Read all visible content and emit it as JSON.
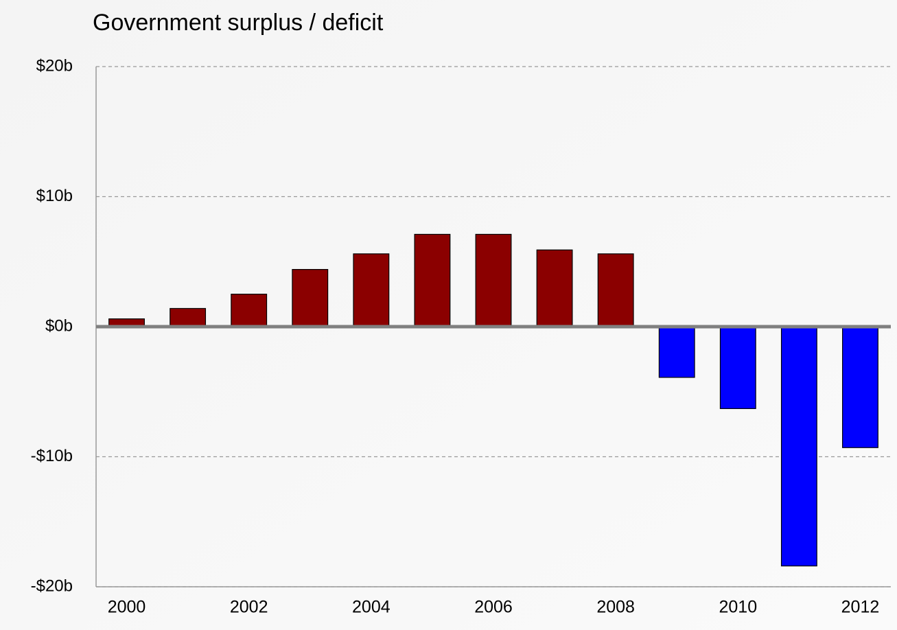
{
  "chart_data": {
    "type": "bar",
    "title": "Government surplus / deficit",
    "categories": [
      "2000",
      null,
      "2002",
      null,
      "2004",
      null,
      "2006",
      null,
      "2008",
      null,
      "2010",
      null,
      "2012"
    ],
    "values": [
      0.6,
      1.4,
      2.5,
      4.4,
      5.6,
      7.1,
      7.1,
      5.9,
      5.6,
      -3.9,
      -6.3,
      -18.4,
      -9.3
    ],
    "colors": [
      "#8b0000",
      "#8b0000",
      "#8b0000",
      "#8b0000",
      "#8b0000",
      "#8b0000",
      "#8b0000",
      "#8b0000",
      "#8b0000",
      "#0000ff",
      "#0000ff",
      "#0000ff",
      "#0000ff"
    ],
    "ylim": [
      -20,
      20
    ],
    "yticks": [
      {
        "value": -20,
        "label": "-$20b"
      },
      {
        "value": -10,
        "label": "-$10b"
      },
      {
        "value": 0,
        "label": "$0b"
      },
      {
        "value": 10,
        "label": "$10b"
      },
      {
        "value": 20,
        "label": "$20b"
      }
    ],
    "grid": true
  }
}
